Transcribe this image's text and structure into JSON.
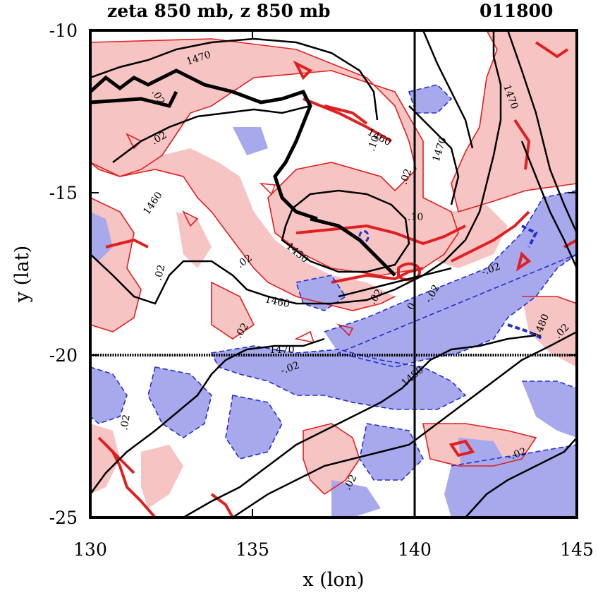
{
  "title_left": "zeta 850 mb, z 850 mb",
  "title_right": "011800",
  "x_axis": {
    "label": "x (lon)",
    "range": [
      130,
      145
    ],
    "ticks": [
      "130",
      "135",
      "140",
      "145"
    ]
  },
  "y_axis": {
    "label": "y (lat)",
    "range": [
      -25,
      -10
    ],
    "ticks": [
      "-10",
      "-15",
      "-20",
      "-25"
    ]
  },
  "colors": {
    "positive_vorticity": "#e02020",
    "positive_fill": "#f7c4c4",
    "negative_vorticity": "#2030d0",
    "negative_fill": "#a8a8ec",
    "height_contour": "#000000"
  },
  "reference_lines": {
    "lon": 140,
    "lat": -20
  },
  "height_contour_labels": [
    "1470",
    "1460",
    "1460",
    "1450",
    "1460",
    "1470",
    "1480",
    "1470",
    "1470",
    "1480"
  ],
  "vorticity_labels": [
    ".02",
    ".02",
    ".02",
    ".02",
    ".02",
    ".10",
    ".10",
    ".02",
    ".02",
    "-.02",
    "-.02",
    "-.02",
    ".02",
    ".02",
    "0",
    "-.02",
    ".02"
  ]
}
